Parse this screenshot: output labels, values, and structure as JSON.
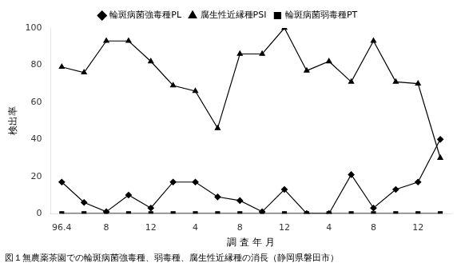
{
  "chart_data": {
    "type": "line",
    "xlabel": "調 査 年 月",
    "ylabel": "検出率",
    "caption": "図１無農薬茶園での輪斑病菌強毒種、弱毒種、腐生性近縁種の消長（静岡県磐田市）",
    "categories": [
      "96.4",
      null,
      "8",
      null,
      "12",
      null,
      "4",
      null,
      "8",
      null,
      "12",
      null,
      "4",
      null,
      "8",
      null,
      "12",
      null
    ],
    "series": [
      {
        "name": "輪斑病菌強毒種PL",
        "color": "#000000",
        "marker": "diamond",
        "values": [
          17,
          6,
          1,
          10,
          3,
          17,
          17,
          9,
          7,
          1,
          13,
          0,
          0,
          21,
          3,
          13,
          17,
          40
        ]
      },
      {
        "name": "腐生性近縁種PSI",
        "color": "#000000",
        "marker": "triangle",
        "values": [
          79,
          76,
          93,
          93,
          82,
          69,
          66,
          46,
          86,
          86,
          100,
          77,
          82,
          71,
          93,
          71,
          70,
          30
        ]
      },
      {
        "name": "輪斑病菌弱毒種PT",
        "color": "#000000",
        "marker": "square",
        "values": [
          0,
          0,
          0,
          0,
          0,
          0,
          0,
          0,
          0,
          0,
          0,
          0,
          0,
          0,
          0,
          0,
          0,
          0
        ]
      }
    ],
    "ylim": [
      0,
      100
    ],
    "yticks": [
      0,
      20,
      40,
      60,
      80,
      100
    ],
    "grid": false,
    "legend": "top"
  }
}
